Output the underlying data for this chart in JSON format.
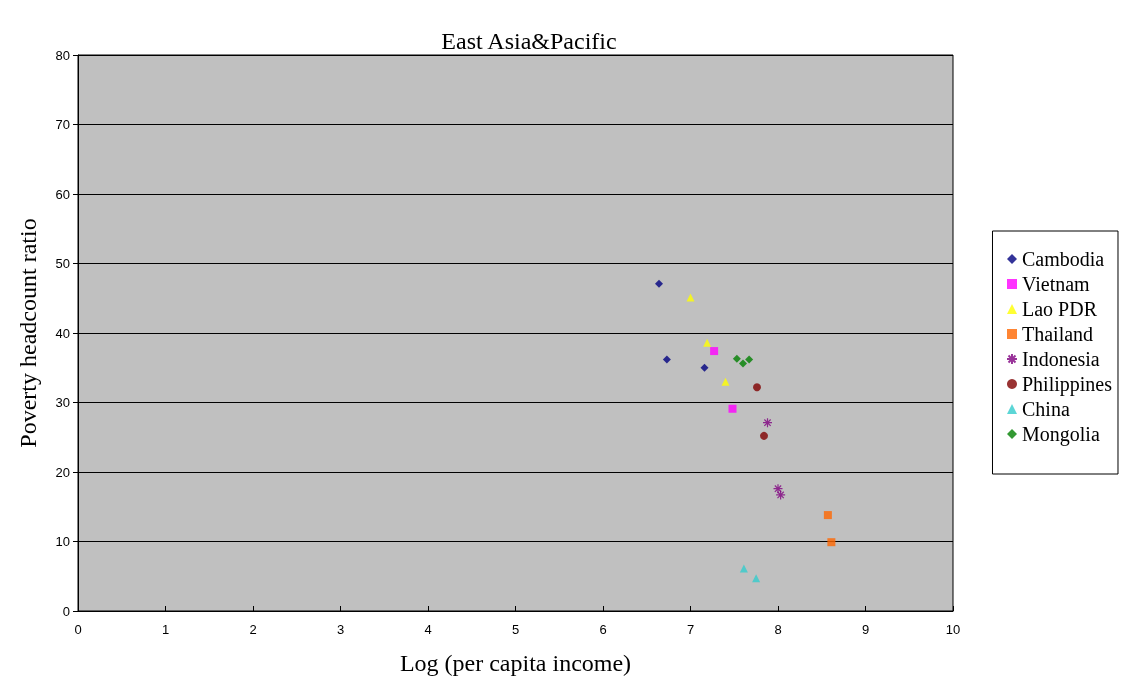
{
  "chart_data": {
    "type": "scatter",
    "title": "East Asia&Pacific",
    "xlabel": "Log (per capita income)",
    "ylabel": "Poverty headcount ratio",
    "xlim": [
      0,
      10
    ],
    "xticks": [
      0,
      1,
      2,
      3,
      4,
      5,
      6,
      7,
      8,
      9,
      10
    ],
    "ylim": [
      0,
      80
    ],
    "yticks": [
      0,
      10,
      20,
      30,
      40,
      50,
      60,
      70,
      80
    ],
    "grid": "y",
    "legend": "right",
    "series": [
      {
        "name": "Cambodia",
        "color": "#000080",
        "marker": "diamond",
        "x": [
          6.64,
          6.73,
          7.16
        ],
        "values": [
          47.1,
          36.2,
          35.0
        ]
      },
      {
        "name": "Vietnam",
        "color": "#ff00ff",
        "marker": "square",
        "x": [
          7.27,
          7.48
        ],
        "values": [
          37.4,
          29.1
        ]
      },
      {
        "name": "Lao PDR",
        "color": "#ffff00",
        "marker": "triangle",
        "x": [
          7.0,
          7.19,
          7.4
        ],
        "values": [
          45.1,
          38.6,
          33.0
        ]
      },
      {
        "name": "Thailand",
        "color": "#ff6600",
        "marker": "square",
        "x": [
          8.57,
          8.61
        ],
        "values": [
          13.8,
          9.9
        ]
      },
      {
        "name": "Indonesia",
        "color": "#800080",
        "marker": "cross",
        "x": [
          7.88,
          8.0,
          8.03
        ],
        "values": [
          27.1,
          17.6,
          16.7
        ]
      },
      {
        "name": "Philippines",
        "color": "#800000",
        "marker": "circle",
        "x": [
          7.76,
          7.84
        ],
        "values": [
          32.2,
          25.2
        ]
      },
      {
        "name": "China",
        "color": "#33cccc",
        "marker": "triangle",
        "x": [
          7.61,
          7.75
        ],
        "values": [
          6.1,
          4.7
        ]
      },
      {
        "name": "Mongolia",
        "color": "#008000",
        "marker": "diamond",
        "x": [
          7.53,
          7.6,
          7.67
        ],
        "values": [
          36.3,
          35.6,
          36.2
        ]
      }
    ]
  }
}
